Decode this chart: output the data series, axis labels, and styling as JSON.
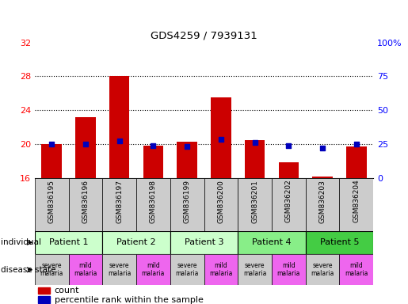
{
  "title": "GDS4259 / 7939131",
  "samples": [
    "GSM836195",
    "GSM836196",
    "GSM836197",
    "GSM836198",
    "GSM836199",
    "GSM836200",
    "GSM836201",
    "GSM836202",
    "GSM836203",
    "GSM836204"
  ],
  "counts": [
    20.0,
    23.2,
    28.0,
    19.8,
    20.3,
    25.5,
    20.5,
    17.8,
    16.2,
    19.7
  ],
  "percentile_ranks": [
    25.0,
    25.0,
    27.5,
    23.5,
    23.0,
    28.5,
    26.0,
    24.0,
    22.0,
    25.0
  ],
  "ylim": [
    16,
    32
  ],
  "yticks": [
    16,
    20,
    24,
    28,
    32
  ],
  "yticks_right": [
    0,
    25,
    50,
    75,
    100
  ],
  "ylim_right": [
    0,
    100
  ],
  "bar_color": "#cc0000",
  "dot_color": "#0000bb",
  "bar_bottom": 16,
  "patients": [
    {
      "label": "Patient 1",
      "start": 0,
      "end": 2,
      "color": "#ccffcc"
    },
    {
      "label": "Patient 2",
      "start": 2,
      "end": 4,
      "color": "#ccffcc"
    },
    {
      "label": "Patient 3",
      "start": 4,
      "end": 6,
      "color": "#ccffcc"
    },
    {
      "label": "Patient 4",
      "start": 6,
      "end": 8,
      "color": "#88ee88"
    },
    {
      "label": "Patient 5",
      "start": 8,
      "end": 10,
      "color": "#44cc44"
    }
  ],
  "disease_states": [
    {
      "label": "severe\nmalaria",
      "color": "#cccccc"
    },
    {
      "label": "mild\nmalaria",
      "color": "#ee66ee"
    },
    {
      "label": "severe\nmalaria",
      "color": "#cccccc"
    },
    {
      "label": "mild\nmalaria",
      "color": "#ee66ee"
    },
    {
      "label": "severe\nmalaria",
      "color": "#cccccc"
    },
    {
      "label": "mild\nmalaria",
      "color": "#ee66ee"
    },
    {
      "label": "severe\nmalaria",
      "color": "#cccccc"
    },
    {
      "label": "mild\nmalaria",
      "color": "#ee66ee"
    },
    {
      "label": "severe\nmalaria",
      "color": "#cccccc"
    },
    {
      "label": "mild\nmalaria",
      "color": "#ee66ee"
    }
  ],
  "sample_bg_color": "#cccccc",
  "gridline_color": "#000000"
}
